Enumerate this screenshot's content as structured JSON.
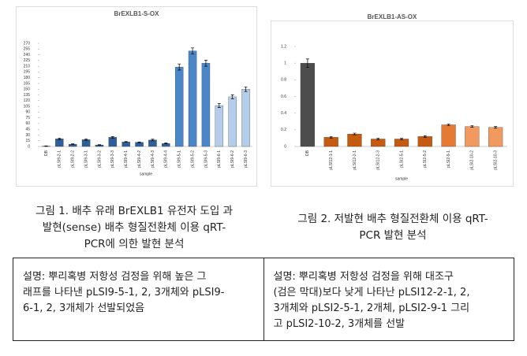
{
  "chart_data": [
    {
      "type": "bar",
      "title": "BrEXLB1-S-OX",
      "x_label": "sample",
      "categories": [
        "DB",
        "pLSI9-2-1",
        "pLSI9-2-2",
        "pLSI9-3-1",
        "pLSI9-3-2",
        "pLSI9-3-3",
        "pLSI9-4-1",
        "pLSI9-4-2",
        "pLSI9-4-3",
        "pLSI9-4-4",
        "pLSI9-5-1",
        "pLSI9-5-2",
        "pLSI9-5-3",
        "pLSI9-6-1",
        "pLSI9-6-2",
        "pLSI9-6-3"
      ],
      "values": [
        1,
        20,
        6,
        18,
        4,
        24,
        12,
        11,
        17,
        8,
        208,
        250,
        218,
        107,
        130,
        150
      ],
      "errors": [
        0.5,
        2,
        1,
        2,
        1,
        2,
        1,
        1,
        2,
        1,
        8,
        8,
        8,
        5,
        5,
        6
      ],
      "colors": [
        "#2f5f98",
        "#2f5f98",
        "#2f5f98",
        "#2f5f98",
        "#2f5f98",
        "#2f5f98",
        "#2f5f98",
        "#2f5f98",
        "#2f5f98",
        "#2f5f98",
        "#4a86c8",
        "#4a86c8",
        "#4a86c8",
        "#b4cdea",
        "#b4cdea",
        "#b4cdea"
      ],
      "ylim": [
        0,
        270
      ],
      "yticks": [
        0,
        15,
        30,
        45,
        60,
        75,
        90,
        105,
        120,
        135,
        150,
        165,
        180,
        195,
        210,
        225,
        240,
        255,
        270
      ]
    },
    {
      "type": "bar",
      "title": "BrEXLB1-AS-OX",
      "x_label": "sample",
      "categories": [
        "DB",
        "pLSI12-1-1",
        "pLSI12-2-1",
        "pLSI12-2-3",
        "pLSI2-5-1",
        "pLSI2-5-2",
        "pLSI2-9-1",
        "pLSI2-10-2",
        "pLSI2-10-3"
      ],
      "values": [
        1.0,
        0.11,
        0.15,
        0.09,
        0.09,
        0.12,
        0.26,
        0.24,
        0.23
      ],
      "errors": [
        0.05,
        0.01,
        0.01,
        0.01,
        0.01,
        0.01,
        0.01,
        0.01,
        0.01
      ],
      "colors": [
        "#4d4d4d",
        "#c55a11",
        "#c55a11",
        "#c55a11",
        "#c55a11",
        "#c55a11",
        "#e57a35",
        "#f09a60",
        "#f09a60"
      ],
      "ylim": [
        0,
        1.2
      ],
      "yticks": [
        0,
        0.2,
        0.4,
        0.6,
        0.8,
        1,
        1.2
      ]
    }
  ],
  "captions": [
    [
      "그림 1. 배추 유래 BrEXLB1 유전자 도입 과",
      "발현(sense) 배추 형질전환체 이용 qRT-",
      "PCR에 의한 발현 분석"
    ],
    [
      "그림 2. 저발현 배추 형질전환체 이용 qRT-",
      "PCR 발현 분석"
    ]
  ],
  "table": {
    "rows": [
      [
        [
          "설명: 뿌리혹병 저항성 검정을 위해 높은 그",
          "래프를 나타낸 pLSI9-5-1, 2, 3개체와 pLSI9-",
          "6-1, 2, 3개체가 선발되었음"
        ],
        [
          "설명: 뿌리혹병 저항성 검정을 위해 대조구",
          "(검은 막대)보다 낮게 나타난 pLSI12-2-1, 2,",
          "3개체와 pLSI2-5-1, 2개체, pLSI2-9-1 그리",
          "고 pLSI2-10-2, 3개체를 선발"
        ]
      ]
    ]
  }
}
